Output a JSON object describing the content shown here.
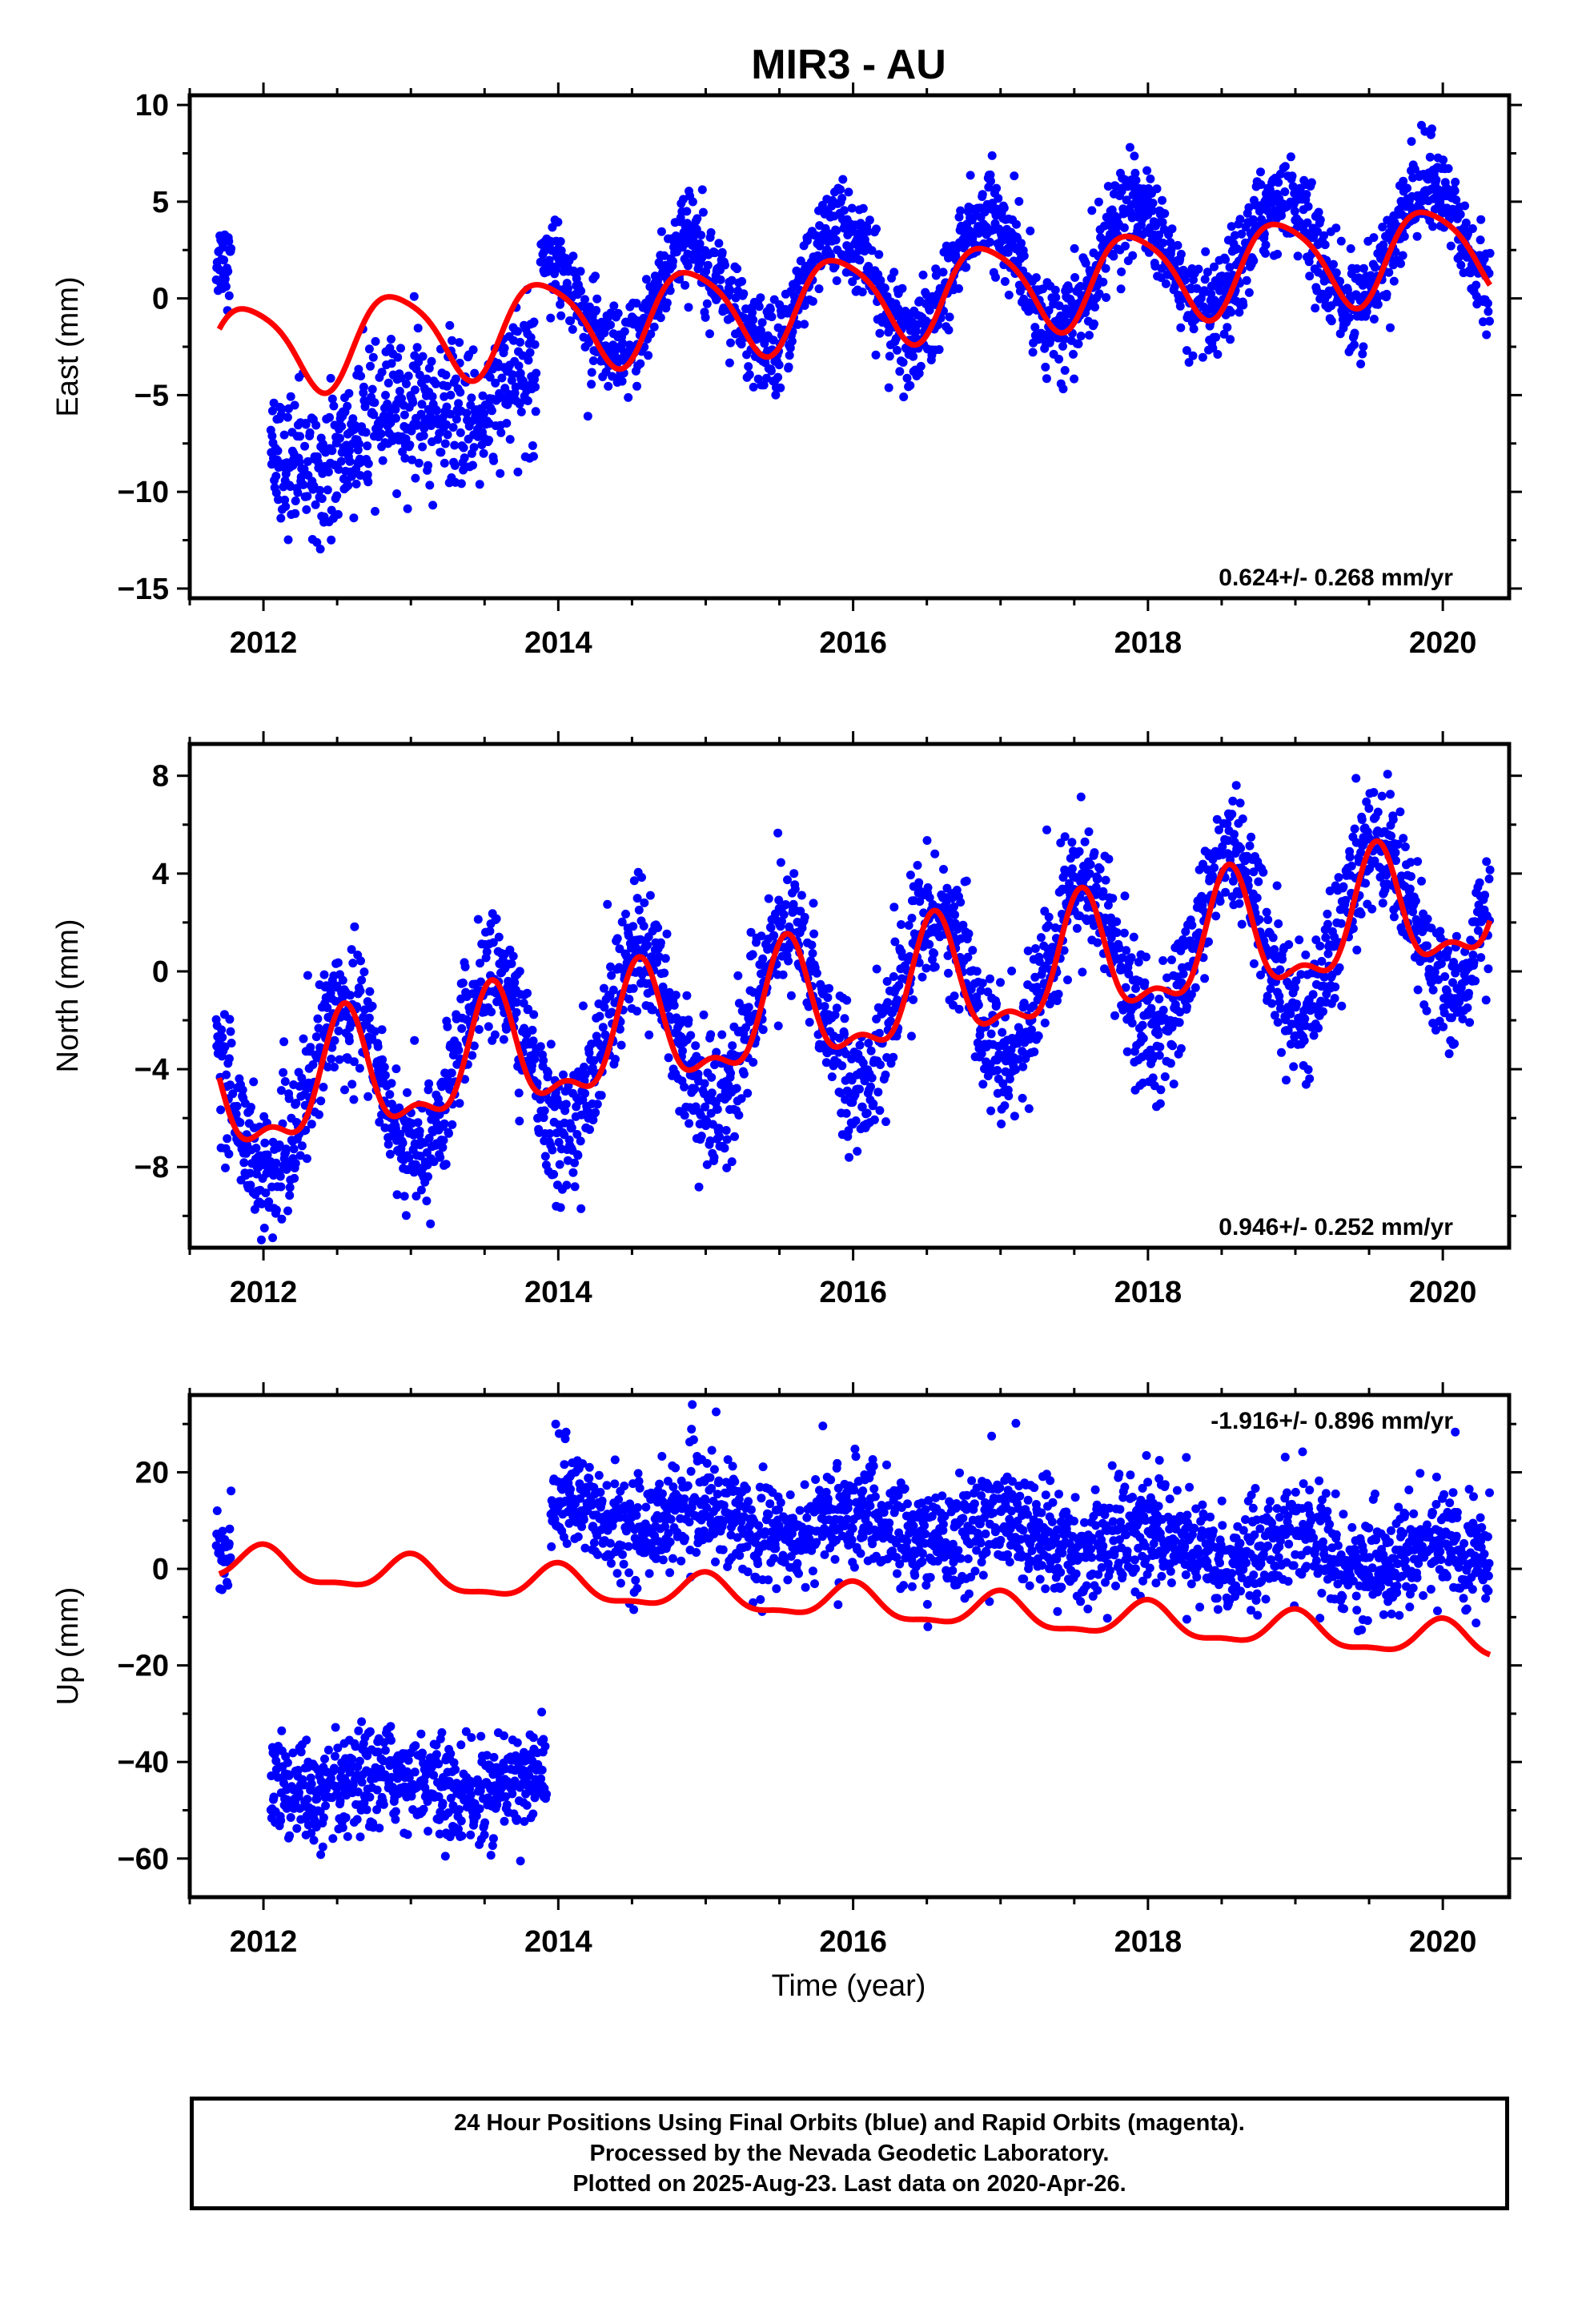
{
  "title": "MIR3 - AU",
  "xlabel": "Time (year)",
  "footer": [
    "24 Hour Positions Using Final Orbits (blue) and Rapid Orbits (magenta).",
    "Processed by the Nevada Geodetic Laboratory.",
    "Plotted on 2025-Aug-23. Last data on 2020-Apr-26."
  ],
  "colors": {
    "points": "#0000ff",
    "model": "#ff0000",
    "axes": "#000000"
  },
  "chart_data": [
    {
      "type": "scatter",
      "ylabel": "East (mm)",
      "xlim": [
        2011.5,
        2020.45
      ],
      "ylim": [
        -15.5,
        10.5
      ],
      "xticks": [
        2012,
        2014,
        2016,
        2018,
        2020
      ],
      "yticks": [
        -15,
        -10,
        -5,
        0,
        5,
        10
      ],
      "rate_label": "0.624+/- 0.268 mm/yr",
      "rate_position": "bottom-right",
      "model": {
        "name": "seasonal + linear fit",
        "t0": 2011.7,
        "t1": 2020.32,
        "offset": -2.7,
        "rate": 0.624,
        "annual_amp": 2.3,
        "annual_peak": 0.9,
        "semi_amp": 0.4,
        "semi_phase": 0.2,
        "steps": [
          {
            "t": 2013.9,
            "dy": 0.0
          }
        ]
      },
      "points_model": {
        "segments": [
          {
            "t0": 2011.68,
            "t1": 2011.78,
            "mean": 2.0,
            "rate": 0,
            "annual_amp": 0,
            "annual_peak": 0,
            "noise": 1.0
          },
          {
            "t0": 2012.05,
            "t1": 2013.85,
            "mean": -8.6,
            "rate": 2.4,
            "annual_amp": 0.8,
            "annual_peak": 0.9,
            "noise": 1.8
          },
          {
            "t0": 2013.88,
            "t1": 2020.32,
            "mean": -0.5,
            "rate": 0.55,
            "annual_amp": 3.0,
            "annual_peak": 0.9,
            "noise": 1.2
          }
        ]
      }
    },
    {
      "type": "scatter",
      "ylabel": "North (mm)",
      "xlim": [
        2011.5,
        2020.45
      ],
      "ylim": [
        -11.3,
        9.3
      ],
      "xticks": [
        2012,
        2014,
        2016,
        2018,
        2020
      ],
      "yticks": [
        -8,
        -4,
        0,
        4,
        8
      ],
      "rate_label": "0.946+/- 0.252 mm/yr",
      "rate_position": "bottom-right",
      "model": {
        "name": "seasonal + linear fit",
        "t0": 2011.7,
        "t1": 2020.32,
        "offset": -5.4,
        "rate": 0.946,
        "annual_amp": 2.3,
        "annual_peak": 0.55,
        "semi_amp": 1.0,
        "semi_phase": 0.05,
        "steps": []
      },
      "points_model": {
        "segments": [
          {
            "t0": 2011.68,
            "t1": 2020.32,
            "mean": -5.4,
            "rate": 0.946,
            "annual_amp": 3.4,
            "annual_peak": 0.55,
            "noise": 1.3
          }
        ]
      }
    },
    {
      "type": "scatter",
      "ylabel": "Up (mm)",
      "xlim": [
        2011.5,
        2020.45
      ],
      "ylim": [
        -68,
        36
      ],
      "xticks": [
        2012,
        2014,
        2016,
        2018,
        2020
      ],
      "yticks": [
        -60,
        -40,
        -20,
        0,
        20
      ],
      "rate_label": "-1.916+/- 0.896 mm/yr",
      "rate_position": "top-right",
      "model": {
        "name": "seasonal + linear fit",
        "t0": 2011.7,
        "t1": 2020.32,
        "offset": 1.0,
        "rate": -1.916,
        "annual_amp": 3.5,
        "annual_peak": 0.0,
        "semi_amp": 1.2,
        "semi_phase": 0.0,
        "steps": []
      },
      "points_model": {
        "segments": [
          {
            "t0": 2011.68,
            "t1": 2011.78,
            "mean": 4.0,
            "rate": 0,
            "annual_amp": 0,
            "annual_peak": 0,
            "noise": 4.0
          },
          {
            "t0": 2012.05,
            "t1": 2013.92,
            "mean": -45.0,
            "rate": 0.0,
            "annual_amp": 2.5,
            "annual_peak": 0.9,
            "noise": 5.0
          },
          {
            "t0": 2013.95,
            "t1": 2020.32,
            "mean": 12.0,
            "rate": -1.6,
            "annual_amp": 3.0,
            "annual_peak": 0.0,
            "noise": 5.5
          }
        ]
      }
    }
  ]
}
